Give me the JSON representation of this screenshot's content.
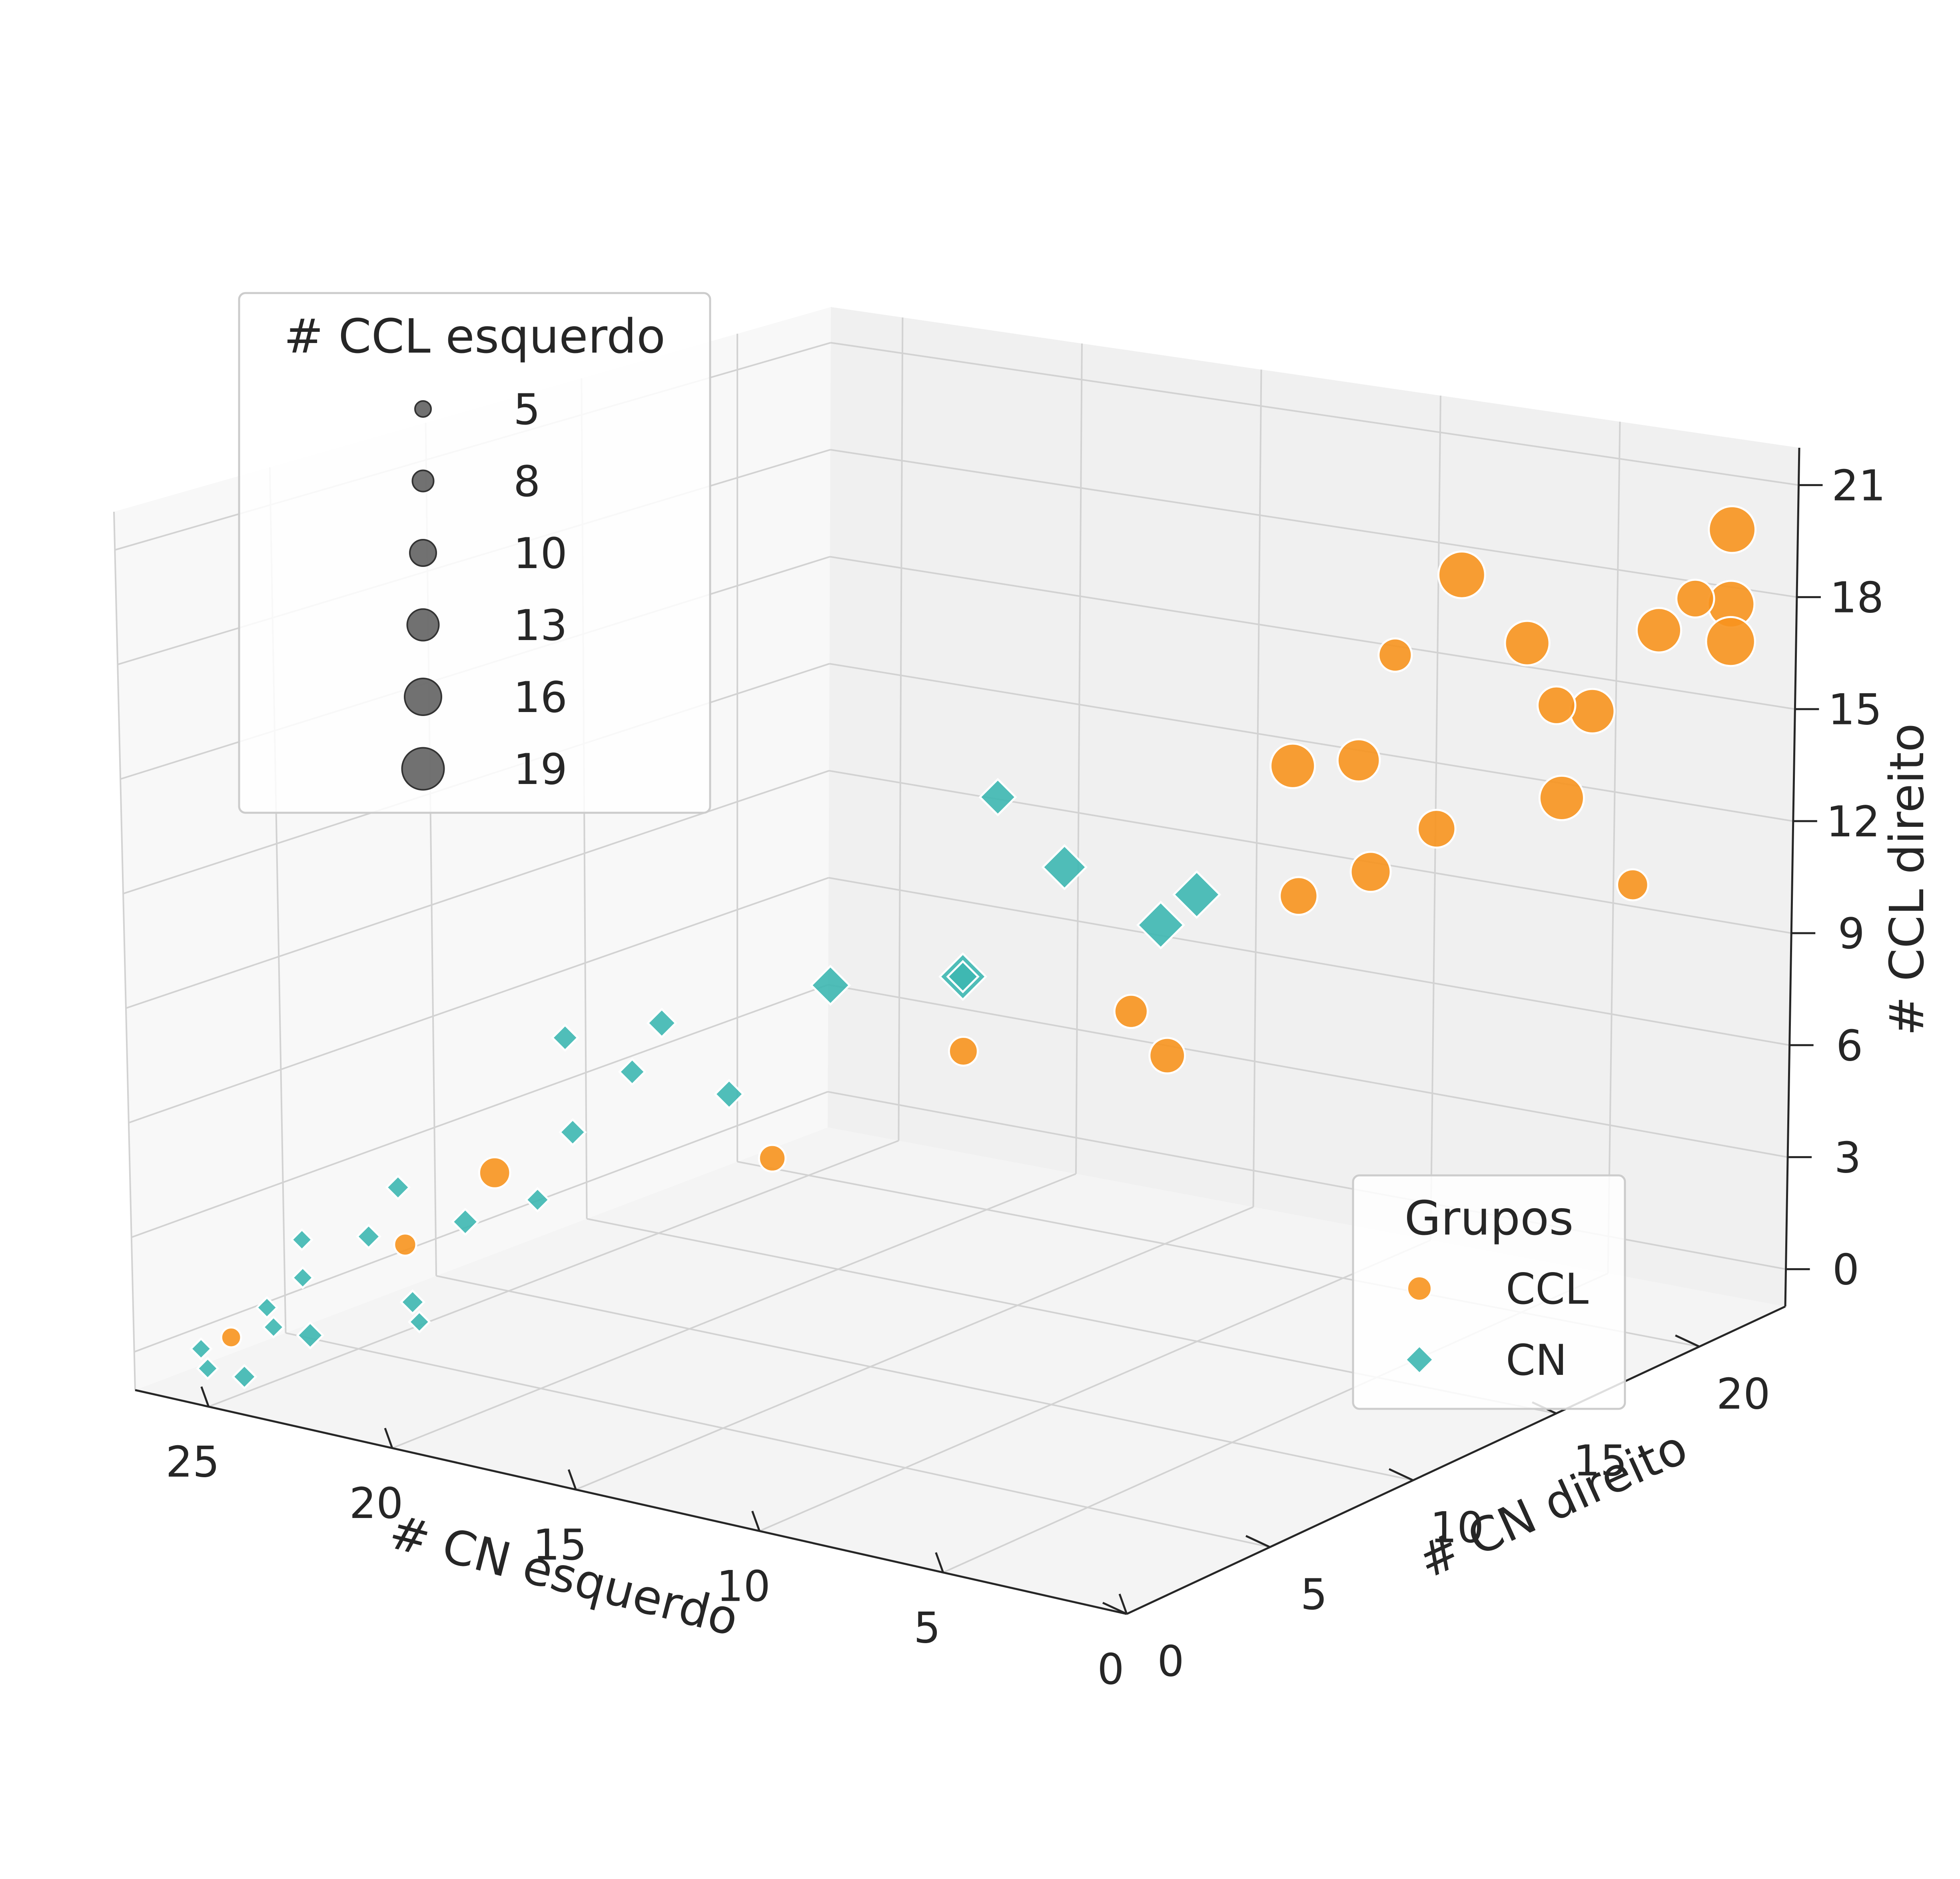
{
  "chart_data": {
    "type": "scatter",
    "xlabel": "# CN esquerdo",
    "ylabel": "# CN direito",
    "zlabel": "# CCL direito",
    "x_ticks": [
      0,
      5,
      10,
      15,
      20,
      25
    ],
    "y_ticks": [
      0,
      5,
      10,
      15,
      20
    ],
    "z_ticks": [
      0,
      3,
      6,
      9,
      12,
      15,
      18,
      21
    ],
    "xlim": [
      0,
      27
    ],
    "ylim": [
      0,
      23
    ],
    "zlim": [
      -1,
      22
    ],
    "grid": true,
    "size_legend": {
      "title": "# CCL esquerdo",
      "placement": "upper-left",
      "entries": [
        {
          "label": "5",
          "value": 5
        },
        {
          "label": "8",
          "value": 8
        },
        {
          "label": "10",
          "value": 10
        },
        {
          "label": "13",
          "value": 13
        },
        {
          "label": "16",
          "value": 16
        },
        {
          "label": "19",
          "value": 19
        }
      ]
    },
    "group_legend": {
      "title": "Grupos",
      "placement": "lower-right"
    },
    "series": [
      {
        "name": "CCL",
        "marker": "circle",
        "color": "#F7931E",
        "points": [
          [
            1,
            22,
            20,
            17
          ],
          [
            1,
            22,
            18,
            17
          ],
          [
            1,
            22,
            17,
            18
          ],
          [
            2,
            22,
            18,
            13
          ],
          [
            3,
            22,
            17,
            16
          ],
          [
            4,
            21,
            15,
            16
          ],
          [
            5,
            20,
            17,
            16
          ],
          [
            4,
            20,
            13,
            16
          ],
          [
            6,
            19,
            19,
            17
          ],
          [
            2,
            20,
            11,
            10
          ],
          [
            8,
            18,
            14,
            15
          ],
          [
            7,
            18,
            17,
            11
          ],
          [
            9,
            17,
            14,
            16
          ],
          [
            5,
            17,
            13,
            13
          ],
          [
            6,
            16,
            12,
            14
          ],
          [
            8,
            16,
            11,
            13
          ],
          [
            10,
            14,
            7,
            12
          ],
          [
            11,
            14,
            8,
            11
          ],
          [
            14,
            12,
            7,
            9
          ],
          [
            22,
            6,
            4,
            10
          ],
          [
            16,
            8,
            5,
            8
          ],
          [
            22,
            3,
            3,
            6
          ],
          [
            26,
            2,
            0,
            5
          ],
          [
            5,
            21,
            15,
            13
          ]
        ]
      },
      {
        "name": "CN",
        "marker": "diamond",
        "color": "#3DB7B1",
        "points": [
          [
            13,
            12,
            14,
            10
          ],
          [
            12,
            13,
            12,
            13
          ],
          [
            10,
            15,
            11,
            14
          ],
          [
            11,
            15,
            10,
            14
          ],
          [
            14,
            12,
            9,
            14
          ],
          [
            14,
            12,
            9,
            8
          ],
          [
            16,
            10,
            9,
            11
          ],
          [
            18,
            9,
            6,
            7
          ],
          [
            19,
            8,
            8,
            7
          ],
          [
            19,
            7,
            7,
            6
          ],
          [
            20,
            6,
            8,
            6
          ],
          [
            19,
            5,
            6,
            6
          ],
          [
            20,
            5,
            4,
            5
          ],
          [
            23,
            4,
            4,
            5
          ],
          [
            23,
            3,
            3,
            5
          ],
          [
            24,
            2,
            3,
            4
          ],
          [
            24,
            2,
            2,
            4
          ],
          [
            25,
            2,
            1,
            4
          ],
          [
            24,
            1,
            1,
            4
          ],
          [
            24,
            0,
            0,
            5
          ],
          [
            23,
            1,
            1,
            6
          ],
          [
            21,
            2,
            2,
            5
          ],
          [
            20,
            1,
            2,
            4
          ],
          [
            22,
            5,
            3,
            6
          ],
          [
            25,
            0,
            0,
            4
          ],
          [
            26,
            1,
            0,
            4
          ]
        ]
      }
    ]
  }
}
